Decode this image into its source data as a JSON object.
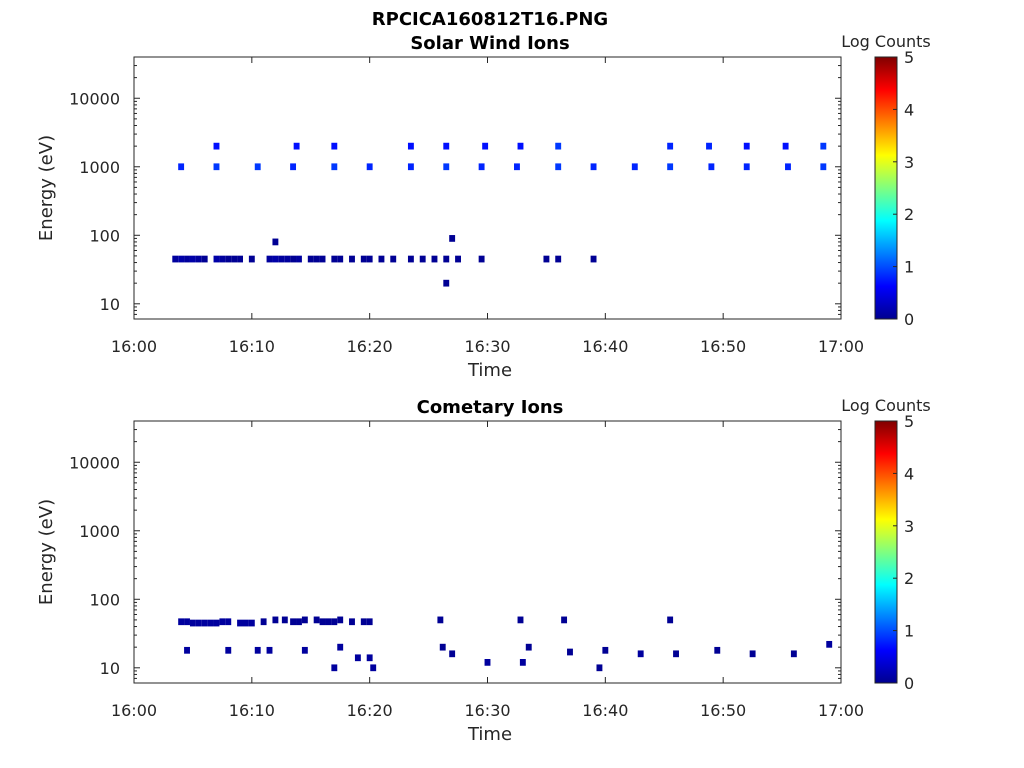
{
  "figure_title": "RPCICA160812T16.PNG",
  "chart_data": [
    {
      "type": "heatmap",
      "title": "Solar Wind Ions",
      "xlabel": "Time",
      "ylabel": "Energy (eV)",
      "x_ticks": [
        "16:00",
        "16:10",
        "16:20",
        "16:30",
        "16:40",
        "16:50",
        "17:00"
      ],
      "xlim": [
        "16:00",
        "17:00"
      ],
      "y_scale": "log",
      "y_ticks": [
        "10",
        "100",
        "1000",
        "10000"
      ],
      "ylim": [
        6,
        40000
      ],
      "colorbar": {
        "label": "Log Counts",
        "ticks": [
          "0",
          "1",
          "2",
          "3",
          "4",
          "5"
        ],
        "range": [
          0,
          5
        ],
        "colormap": "jet"
      },
      "point_fields": [
        "time_minutes_after_16:00",
        "energy_eV",
        "log_counts"
      ],
      "points": [
        [
          3.5,
          45,
          0.15
        ],
        [
          4,
          45,
          0.2
        ],
        [
          4.5,
          45,
          0.15
        ],
        [
          5,
          45,
          0.2
        ],
        [
          5.5,
          45,
          0.15
        ],
        [
          6,
          45,
          0.1
        ],
        [
          7,
          45,
          0.2
        ],
        [
          7.5,
          45,
          0.15
        ],
        [
          8,
          45,
          0.1
        ],
        [
          8.5,
          45,
          0.1
        ],
        [
          9,
          45,
          0.1
        ],
        [
          10,
          45,
          0.1
        ],
        [
          11.5,
          45,
          0.15
        ],
        [
          12,
          45,
          0.2
        ],
        [
          12.5,
          45,
          0.15
        ],
        [
          13,
          45,
          0.15
        ],
        [
          13.5,
          45,
          0.1
        ],
        [
          14,
          45,
          0.15
        ],
        [
          15,
          45,
          0.1
        ],
        [
          15.5,
          45,
          0.1
        ],
        [
          16,
          45,
          0.1
        ],
        [
          17,
          45,
          0.1
        ],
        [
          17.5,
          45,
          0.1
        ],
        [
          18.5,
          45,
          0.1
        ],
        [
          19.5,
          45,
          0.1
        ],
        [
          20,
          45,
          0.1
        ],
        [
          21,
          45,
          0.1
        ],
        [
          22,
          45,
          0.1
        ],
        [
          23.5,
          45,
          0.1
        ],
        [
          24.5,
          45,
          0.1
        ],
        [
          25.5,
          45,
          0.1
        ],
        [
          26.5,
          45,
          0.1
        ],
        [
          27.5,
          45,
          0.1
        ],
        [
          29.5,
          45,
          0.1
        ],
        [
          35,
          45,
          0.1
        ],
        [
          36,
          45,
          0.1
        ],
        [
          39,
          45,
          0.1
        ],
        [
          12,
          80,
          0.1
        ],
        [
          27,
          90,
          0.1
        ],
        [
          26.5,
          20,
          0.1
        ],
        [
          4,
          1000,
          0.8
        ],
        [
          7,
          1000,
          0.9
        ],
        [
          10.5,
          1000,
          0.9
        ],
        [
          13.5,
          1000,
          0.8
        ],
        [
          17,
          1000,
          0.9
        ],
        [
          20,
          1000,
          0.8
        ],
        [
          23.5,
          1000,
          0.8
        ],
        [
          26.5,
          1000,
          0.9
        ],
        [
          29.5,
          1000,
          0.8
        ],
        [
          32.5,
          1000,
          0.8
        ],
        [
          36,
          1000,
          0.9
        ],
        [
          39,
          1000,
          0.8
        ],
        [
          42.5,
          1000,
          0.8
        ],
        [
          45.5,
          1000,
          0.9
        ],
        [
          49,
          1000,
          0.8
        ],
        [
          52,
          1000,
          0.8
        ],
        [
          55.5,
          1000,
          0.8
        ],
        [
          58.5,
          1000,
          0.9
        ],
        [
          7,
          2000,
          0.7
        ],
        [
          13.8,
          2000,
          0.7
        ],
        [
          17,
          2000,
          0.7
        ],
        [
          23.5,
          2000,
          0.7
        ],
        [
          26.5,
          2000,
          0.7
        ],
        [
          29.8,
          2000,
          0.7
        ],
        [
          32.8,
          2000,
          0.7
        ],
        [
          36,
          2000,
          0.9
        ],
        [
          45.5,
          2000,
          0.8
        ],
        [
          48.8,
          2000,
          0.8
        ],
        [
          52,
          2000,
          0.7
        ],
        [
          55.3,
          2000,
          0.7
        ],
        [
          58.5,
          2000,
          0.9
        ]
      ]
    },
    {
      "type": "heatmap",
      "title": "Cometary Ions",
      "xlabel": "Time",
      "ylabel": "Energy (eV)",
      "x_ticks": [
        "16:00",
        "16:10",
        "16:20",
        "16:30",
        "16:40",
        "16:50",
        "17:00"
      ],
      "xlim": [
        "16:00",
        "17:00"
      ],
      "y_scale": "log",
      "y_ticks": [
        "10",
        "100",
        "1000",
        "10000"
      ],
      "ylim": [
        6,
        40000
      ],
      "colorbar": {
        "label": "Log Counts",
        "ticks": [
          "0",
          "1",
          "2",
          "3",
          "4",
          "5"
        ],
        "range": [
          0,
          5
        ],
        "colormap": "jet"
      },
      "point_fields": [
        "time_minutes_after_16:00",
        "energy_eV",
        "log_counts"
      ],
      "points": [
        [
          4,
          47,
          0.15
        ],
        [
          4.5,
          47,
          0.15
        ],
        [
          5,
          45,
          0.15
        ],
        [
          5.5,
          45,
          0.15
        ],
        [
          6,
          45,
          0.15
        ],
        [
          6.5,
          45,
          0.15
        ],
        [
          7,
          45,
          0.15
        ],
        [
          7.5,
          47,
          0.15
        ],
        [
          8,
          47,
          0.15
        ],
        [
          9,
          45,
          0.15
        ],
        [
          9.5,
          45,
          0.15
        ],
        [
          10,
          45,
          0.15
        ],
        [
          11,
          47,
          0.1
        ],
        [
          12,
          50,
          0.1
        ],
        [
          12.8,
          50,
          0.1
        ],
        [
          13.5,
          47,
          0.1
        ],
        [
          14,
          47,
          0.1
        ],
        [
          14.5,
          50,
          0.1
        ],
        [
          15.5,
          50,
          0.1
        ],
        [
          16,
          47,
          0.1
        ],
        [
          16.5,
          47,
          0.1
        ],
        [
          17,
          47,
          0.1
        ],
        [
          17.5,
          50,
          0.1
        ],
        [
          18.5,
          47,
          0.1
        ],
        [
          19.5,
          47,
          0.1
        ],
        [
          20,
          47,
          0.1
        ],
        [
          26,
          50,
          0.1
        ],
        [
          32.8,
          50,
          0.1
        ],
        [
          36.5,
          50,
          0.1
        ],
        [
          45.5,
          50,
          0.1
        ],
        [
          4.5,
          18,
          0.15
        ],
        [
          8,
          18,
          0.15
        ],
        [
          10.5,
          18,
          0.15
        ],
        [
          11.5,
          18,
          0.15
        ],
        [
          14.5,
          18,
          0.15
        ],
        [
          17,
          10,
          0.15
        ],
        [
          17.5,
          20,
          0.15
        ],
        [
          19,
          14,
          0.15
        ],
        [
          20,
          14,
          0.15
        ],
        [
          20.3,
          10,
          0.15
        ],
        [
          26.2,
          20,
          0.1
        ],
        [
          27,
          16,
          0.1
        ],
        [
          30,
          12,
          0.15
        ],
        [
          33,
          12,
          0.15
        ],
        [
          33.5,
          20,
          0.1
        ],
        [
          37,
          17,
          0.1
        ],
        [
          39.5,
          10,
          0.1
        ],
        [
          40,
          18,
          0.1
        ],
        [
          43,
          16,
          0.15
        ],
        [
          46,
          16,
          0.1
        ],
        [
          49.5,
          18,
          0.1
        ],
        [
          52.5,
          16,
          0.1
        ],
        [
          56,
          16,
          0.1
        ],
        [
          59,
          22,
          0.15
        ]
      ]
    }
  ]
}
